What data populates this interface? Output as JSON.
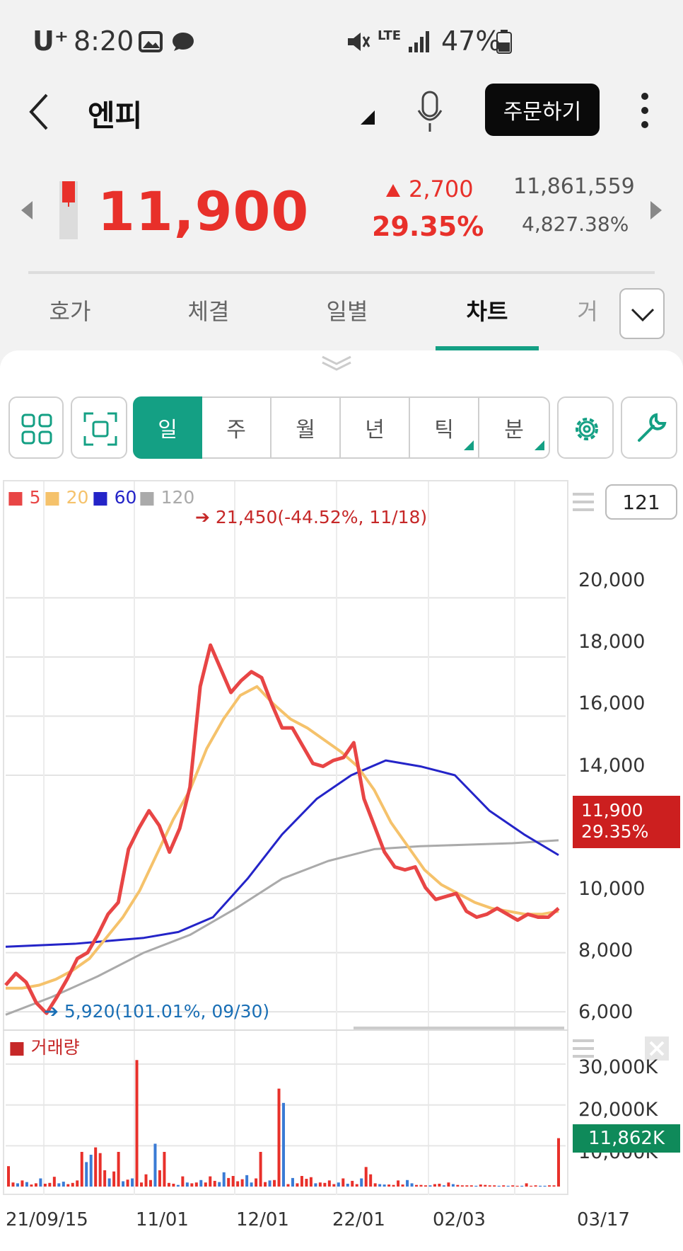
{
  "status_bar": {
    "carrier": "U⁺",
    "time": "8:20",
    "network": "LTE",
    "battery": "47%"
  },
  "header": {
    "title": "엔피",
    "order_button": "주문하기"
  },
  "quote": {
    "price": "11,900",
    "change": "2,700",
    "change_pct": "29.35%",
    "volume": "11,861,559",
    "turnover_pct": "4,827.38%"
  },
  "tabs": [
    "호가",
    "체결",
    "일별",
    "차트",
    "거"
  ],
  "active_tab": "차트",
  "period_tabs": [
    "일",
    "주",
    "월",
    "년",
    "틱",
    "분"
  ],
  "active_period": "일",
  "legend": {
    "ma5": "5",
    "ma20": "20",
    "ma60": "60",
    "ma120": "120"
  },
  "colors": {
    "up": "#e8302a",
    "down": "#3a7bd5",
    "accent": "#14a084",
    "ma5": "#e84545",
    "ma20": "#f5c26b",
    "ma60": "#2424c8",
    "ma120": "#aaaaaa"
  },
  "candle_count": "121",
  "annotations": {
    "high": "21,450(-44.52%, 11/18)",
    "low": "5,920(101.01%, 09/30)"
  },
  "current_price_tag": {
    "price": "11,900",
    "pct": "29.35%"
  },
  "volume_title": "거래량",
  "volume_tag": "11,862K",
  "chart_data": [
    {
      "type": "line",
      "title": "",
      "y_ticks": [
        "20,000",
        "18,000",
        "16,000",
        "14,000",
        "10,000",
        "8,000",
        "6,000"
      ],
      "x_ticks": [
        "21/09/15",
        "11/01",
        "12/01",
        "22/01",
        "02/03",
        "03/17"
      ],
      "ylim": [
        5500,
        22500
      ],
      "series": [
        {
          "name": "5",
          "values": [
            6900,
            7300,
            7000,
            6300,
            5950,
            6500,
            7100,
            7800,
            8000,
            8600,
            9300,
            9700,
            11500,
            12200,
            12800,
            12300,
            11400,
            12200,
            13600,
            17000,
            18400,
            17600,
            16800,
            17200,
            17500,
            17300,
            16400,
            15600,
            15600,
            15000,
            14400,
            14300,
            14500,
            14600,
            15100,
            13200,
            12300,
            11400,
            10900,
            10800,
            10900,
            10200,
            9800,
            9900,
            10000,
            9400,
            9200,
            9300,
            9500,
            9300,
            9100,
            9300,
            9200,
            9200,
            9500
          ]
        },
        {
          "name": "20",
          "values": [
            6800,
            6800,
            6900,
            7100,
            7400,
            7800,
            8500,
            9200,
            10100,
            11300,
            12500,
            13500,
            14900,
            15900,
            16700,
            17000,
            16400,
            15900,
            15600,
            15200,
            14800,
            14300,
            13500,
            12400,
            11600,
            10800,
            10300,
            10000,
            9700,
            9500,
            9400,
            9300,
            9300,
            9400
          ]
        },
        {
          "name": "60",
          "values": [
            8200,
            8250,
            8300,
            8400,
            8500,
            8700,
            9200,
            10500,
            12000,
            13200,
            14000,
            14500,
            14300,
            14000,
            12800,
            12000,
            11300
          ]
        },
        {
          "name": "120",
          "values": [
            5900,
            6500,
            7200,
            8000,
            8600,
            9500,
            10500,
            11100,
            11500,
            11600,
            11650,
            11700,
            11800
          ]
        }
      ]
    },
    {
      "type": "bar",
      "title": "거래량",
      "y_ticks": [
        "30,000K",
        "20,000K",
        "10,000K"
      ],
      "ylim": [
        0,
        34000
      ],
      "series": [
        {
          "name": "거래량",
          "values": [
            5000,
            1000,
            800,
            1500,
            1100,
            500,
            800,
            2000,
            700,
            900,
            2400,
            800,
            1200,
            600,
            900,
            1500,
            8500,
            6000,
            7800,
            9600,
            8200,
            4000,
            2000,
            3700,
            8500,
            1300,
            1700,
            2000,
            31000,
            1000,
            3000,
            1600,
            10500,
            4000,
            8500,
            900,
            700,
            400,
            2500,
            1000,
            800,
            1000,
            1600,
            1000,
            2500,
            1400,
            1100,
            3500,
            2100,
            2600,
            1300,
            1800,
            2800,
            1000,
            2000,
            8500,
            1100,
            1500,
            1600,
            24000,
            20500,
            600,
            2100,
            800,
            2600,
            1900,
            2300,
            800,
            1000,
            900,
            1500,
            600,
            1000,
            2000,
            700,
            1400,
            600,
            2000,
            4800,
            3000,
            800,
            600,
            500,
            500,
            400,
            1500,
            500,
            1600,
            800,
            400,
            400,
            300,
            300,
            600,
            700,
            300,
            1000,
            600,
            400,
            300,
            300,
            300,
            200,
            500,
            400,
            300,
            300,
            200,
            300,
            200,
            300,
            200,
            200,
            800,
            200,
            300,
            200,
            200,
            300,
            300,
            11862
          ]
        }
      ]
    }
  ]
}
